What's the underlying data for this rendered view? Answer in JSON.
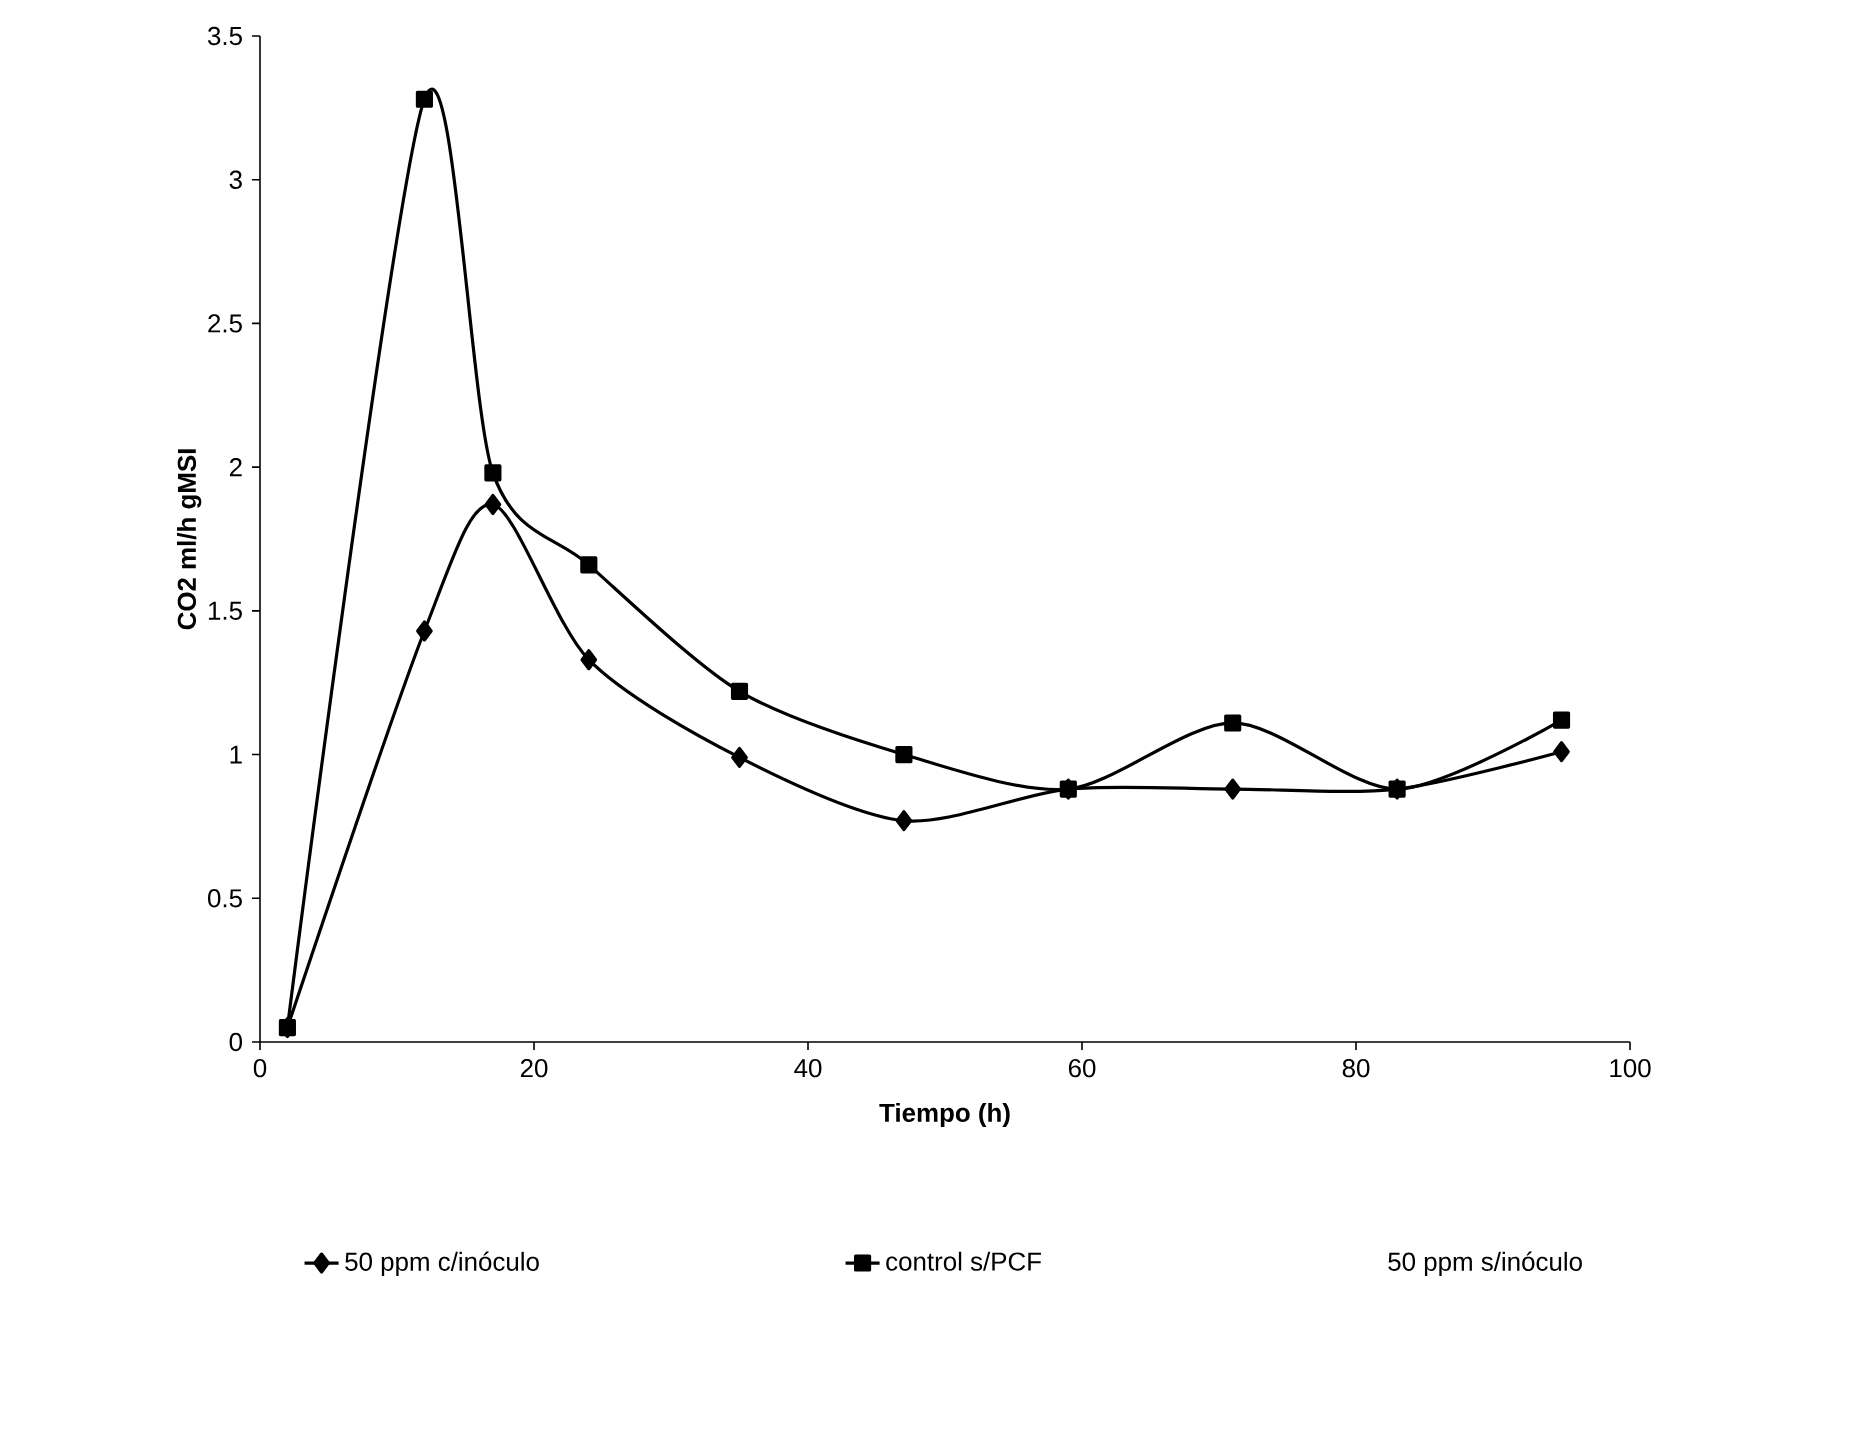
{
  "chart_data": {
    "type": "line",
    "xlabel": "Tiempo (h)",
    "ylabel": "CO2 ml/h gMSI",
    "x": [
      2,
      12,
      17,
      24,
      35,
      47,
      59,
      71,
      83,
      95
    ],
    "series": [
      {
        "name": "50 ppm c/inóculo",
        "color": "#000000",
        "marker": "diamond",
        "values": [
          0.05,
          1.43,
          1.87,
          1.33,
          0.99,
          0.77,
          0.88,
          0.88,
          0.88,
          1.01
        ]
      },
      {
        "name": "control s/PCF",
        "color": "#000000",
        "marker": "square",
        "values": [
          0.05,
          3.28,
          1.98,
          1.66,
          1.22,
          1.0,
          0.88,
          1.11,
          0.88,
          1.12
        ]
      },
      {
        "name": "50 ppm s/inóculo",
        "marker": "none",
        "values": [
          null,
          null,
          null,
          null,
          null,
          null,
          null,
          null,
          null,
          null
        ]
      }
    ],
    "xlim": [
      0,
      100
    ],
    "xticks": [
      0,
      20,
      40,
      60,
      80,
      100
    ],
    "ylim": [
      0,
      3.5
    ],
    "yticks": [
      0,
      0.5,
      1,
      1.5,
      2,
      2.5,
      3,
      3.5
    ],
    "grid": false,
    "legend": "bottom",
    "line_style": "solid"
  }
}
